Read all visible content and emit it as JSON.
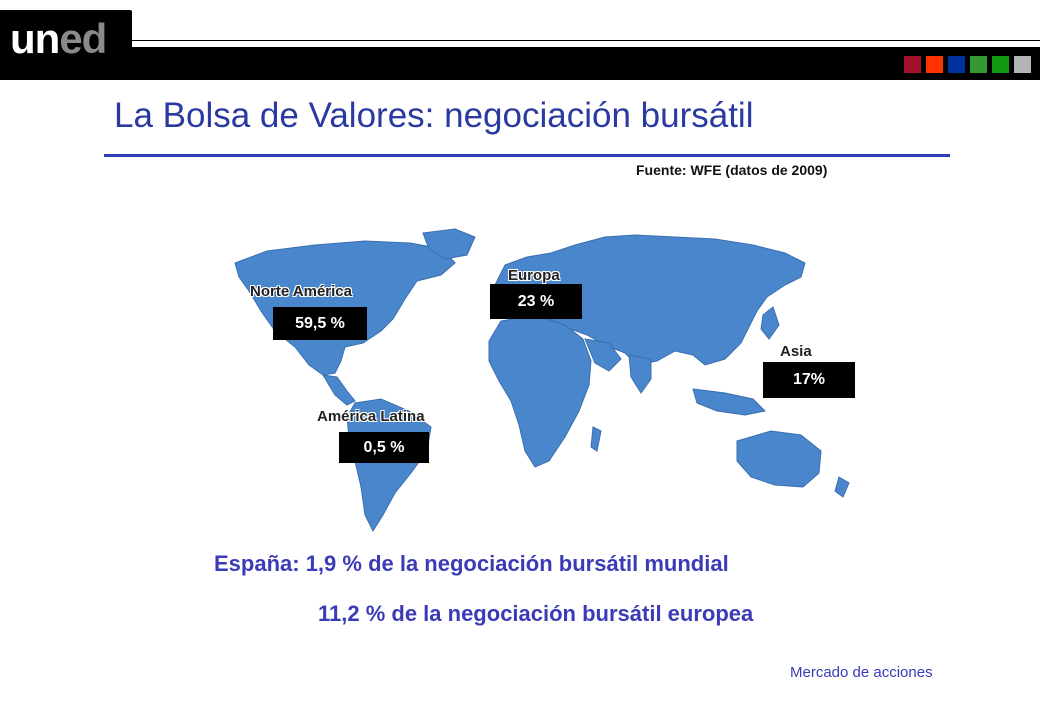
{
  "header": {
    "logo_un": "un",
    "logo_ed": "ed",
    "squares": [
      "#a3112e",
      "#ff3300",
      "#0033a0",
      "#339933",
      "#119911",
      "#b3b3b3"
    ]
  },
  "slide": {
    "title": "La Bolsa de Valores: negociación bursátil",
    "source": "Fuente: WFE (datos de 2009)",
    "regions": {
      "norte_america": {
        "label": "Norte América",
        "value": "59,5 %"
      },
      "europa": {
        "label": "Europa",
        "value": "23 %"
      },
      "asia": {
        "label": "Asia",
        "value": "17%"
      },
      "america_latina": {
        "label": "América Latina",
        "value": "0,5 %"
      }
    },
    "stat_line_1": "España: 1,9 % de la negociación bursátil mundial",
    "stat_line_2": "11,2 % de la negociación bursátil europea",
    "footer": "Mercado de acciones"
  },
  "colors": {
    "map_fill": "#4a86cc",
    "title": "#2a3aa0",
    "accent_text": "#3b3bb8"
  }
}
